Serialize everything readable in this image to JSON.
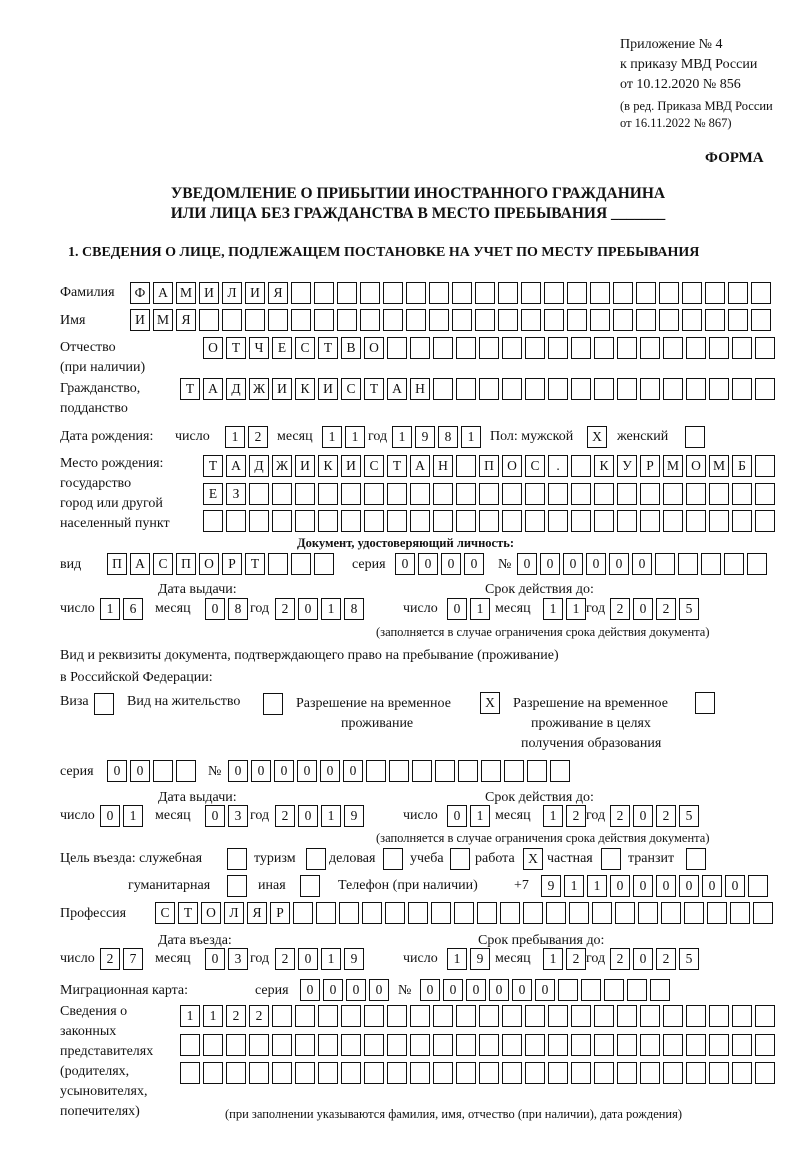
{
  "header": {
    "line1": "Приложение № 4",
    "line2": "к приказу МВД России",
    "line3": "от 10.12.2020 № 856",
    "line4": "(в ред. Приказа МВД России",
    "line5": "от 16.11.2022 № 867)",
    "form": "ФОРМА",
    "title1": "УВЕДОМЛЕНИЕ О ПРИБЫТИИ ИНОСТРАННОГО ГРАЖДАНИНА",
    "title2": "ИЛИ ЛИЦА БЕЗ ГРАЖДАНСТВА В МЕСТО ПРЕБЫВАНИЯ _______",
    "section1": "1. СВЕДЕНИЯ О ЛИЦЕ, ПОДЛЕЖАЩЕМ ПОСТАНОВКЕ НА УЧЕТ ПО МЕСТУ ПРЕБЫВАНИЯ"
  },
  "labels": {
    "surname": "Фамилия",
    "name": "Имя",
    "patronymic1": "Отчество",
    "patronymic2": "(при наличии)",
    "citizenship1": "Гражданство,",
    "citizenship2": "подданство",
    "birth_date": "Дата рождения:",
    "day": "число",
    "month": "месяц",
    "year": "год",
    "sex": "Пол: мужской",
    "female": "женский",
    "birthplace1": "Место рождения:",
    "birthplace2": "государство",
    "birthplace3": "город или другой",
    "birthplace4": "населенный пункт",
    "id_doc": "Документ, удостоверяющий личность:",
    "kind": "вид",
    "series": "серия",
    "number": "№",
    "issue_date": "Дата выдачи:",
    "valid_until": "Срок действия до:",
    "validity_note": "(заполняется в случае ограничения срока действия документа)",
    "right_doc1": "Вид и реквизиты документа, подтверждающего право на пребывание (проживание)",
    "right_doc2": "в Российской Федерации:",
    "visa": "Виза",
    "residence": "Вид на жительство",
    "trp1": "Разрешение на временное",
    "trp2": "проживание",
    "trpe1": "Разрешение на временное",
    "trpe2": "проживание в целях",
    "trpe3": "получения образования",
    "purpose": "Цель въезда: служебная",
    "tourism": "туризм",
    "business": "деловая",
    "study": "учеба",
    "work": "работа",
    "private": "частная",
    "transit": "транзит",
    "humanitarian": "гуманитарная",
    "other": "иная",
    "phone": "Телефон (при наличии)",
    "phone_prefix": "+7",
    "profession": "Профессия",
    "entry_date": "Дата въезда:",
    "stay_until": "Срок пребывания до:",
    "migration_card": "Миграционная карта:",
    "reps1": "Сведения о",
    "reps2": "законных",
    "reps3": "представителях",
    "reps4": "(родителях,",
    "reps5": "усыновителях,",
    "reps6": "попечителях)",
    "reps_note": "(при заполнении указываются фамилия, имя, отчество (при наличии), дата рождения)"
  },
  "fields": {
    "surname": "ФАМИЛИЯ",
    "name": "ИМЯ",
    "patronymic": "ОТЧЕСТВО",
    "citizenship": "ТАДЖИКИСТАН",
    "birth_day": "12",
    "birth_month": "11",
    "birth_year": "1981",
    "sex_male": "X",
    "sex_female": "",
    "birthplace1": "ТАДЖИКИСТАН ПОС. КУРМОМБ",
    "birthplace2": "ЕЗ",
    "birthplace3": "",
    "doc_kind": "ПАСПОРТ",
    "doc_series": "0000",
    "doc_number": "000000",
    "doc_issue_day": "16",
    "doc_issue_month": "08",
    "doc_issue_year": "2018",
    "doc_valid_day": "01",
    "doc_valid_month": "11",
    "doc_valid_year": "2025",
    "visa": "",
    "residence": "",
    "trp": "X",
    "trpe": "",
    "right_series": "00",
    "right_number": "000000",
    "right_issue_day": "01",
    "right_issue_month": "03",
    "right_issue_year": "2019",
    "right_valid_day": "01",
    "right_valid_month": "12",
    "right_valid_year": "2025",
    "p_service": "",
    "p_tourism": "",
    "p_business": "",
    "p_study": "",
    "p_work": "X",
    "p_private": "",
    "p_transit": "",
    "p_humanitarian": "",
    "p_other": "",
    "phone": "911000000",
    "profession": "СТОЛЯР",
    "entry_day": "27",
    "entry_month": "03",
    "entry_year": "2019",
    "stay_day": "19",
    "stay_month": "12",
    "stay_year": "2025",
    "mc_series": "0000",
    "mc_number": "000000",
    "reps1": "1122",
    "reps2": "",
    "reps3": ""
  }
}
